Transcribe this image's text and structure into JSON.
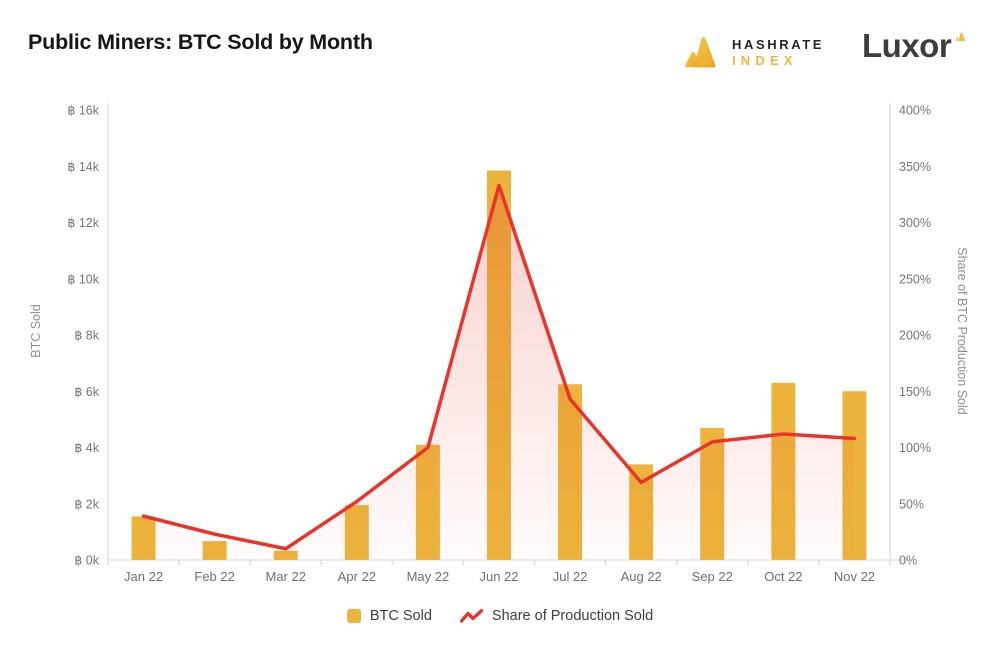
{
  "branding": {
    "hashrate_index": {
      "line1": "HASHRATE",
      "line2": "INDEX"
    },
    "luxor": {
      "wordmark": "Luxor"
    }
  },
  "chart_data": {
    "type": "bar+line combo",
    "title": "Public Miners: BTC Sold by Month",
    "categories": [
      "Jan 22",
      "Feb 22",
      "Mar 22",
      "Apr 22",
      "May 22",
      "Jun 22",
      "Jul 22",
      "Aug 22",
      "Sep 22",
      "Oct 22",
      "Nov 22"
    ],
    "series": [
      {
        "name": "BTC Sold",
        "type": "bar",
        "axis": "left",
        "color": "#ECB43C",
        "values": [
          1550,
          670,
          330,
          1950,
          4100,
          13850,
          6250,
          3400,
          4700,
          6300,
          6000
        ]
      },
      {
        "name": "Share of Production Sold",
        "type": "line",
        "axis": "right",
        "color": "#E8352B",
        "values": [
          39,
          23,
          10,
          52,
          100,
          333,
          143,
          69,
          105,
          112,
          108
        ]
      }
    ],
    "left_axis": {
      "title": "BTC Sold",
      "min": 0,
      "max": 16000,
      "step": 2000,
      "tick_labels": [
        "฿ 0k",
        "฿ 2k",
        "฿ 4k",
        "฿ 6k",
        "฿ 8k",
        "฿ 10k",
        "฿ 12k",
        "฿ 14k",
        "฿ 16k"
      ]
    },
    "right_axis": {
      "title": "Share of BTC Production Sold",
      "min": 0,
      "max": 400,
      "step": 50,
      "tick_labels": [
        "0%",
        "50%",
        "100%",
        "150%",
        "200%",
        "250%",
        "300%",
        "350%",
        "400%"
      ]
    },
    "legend": [
      {
        "label": "BTC Sold",
        "marker": "square-swatch"
      },
      {
        "label": "Share of Production Sold",
        "marker": "zigzag-line"
      }
    ],
    "grid": "none",
    "plot_background": "#FFFFFF"
  },
  "colors": {
    "bar": "#ECB43C",
    "line": "#E8352B",
    "area_top": "rgba(229,57,44,0.24)",
    "area_bottom": "rgba(229,57,44,0.02)",
    "axis_line": "#E9E9E9",
    "tick_mark": "#DCDCDC",
    "gold_light": "#F6C54F",
    "gold_dark": "#E9A825"
  }
}
